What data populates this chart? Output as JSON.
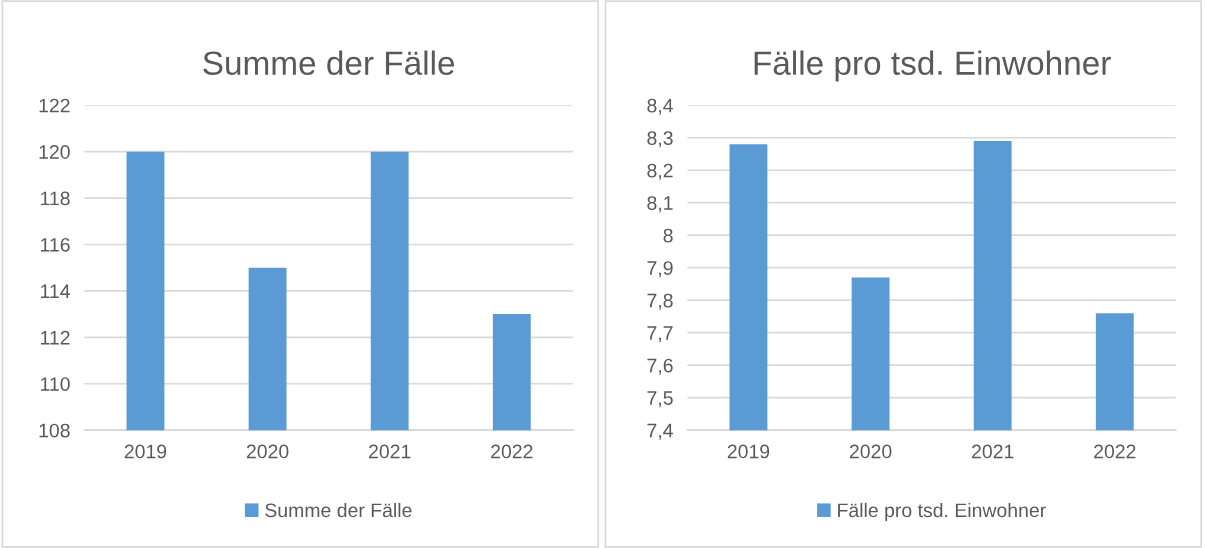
{
  "chart_data": [
    {
      "type": "bar",
      "title": "Summe der Fälle",
      "categories": [
        "2019",
        "2020",
        "2021",
        "2022"
      ],
      "series": [
        {
          "name": "Summe der Fälle",
          "color": "#5b9bd5",
          "values": [
            120,
            115,
            120,
            113
          ]
        }
      ],
      "ylim": [
        108,
        122
      ],
      "yticks": [
        108,
        110,
        112,
        114,
        116,
        118,
        120,
        122
      ],
      "grid": "y",
      "legend": "bottom"
    },
    {
      "type": "bar",
      "title": "Fälle pro tsd. Einwohner",
      "categories": [
        "2019",
        "2020",
        "2021",
        "2022"
      ],
      "series": [
        {
          "name": "Fälle pro tsd. Einwohner",
          "color": "#5b9bd5",
          "values": [
            8.28,
            7.87,
            8.29,
            7.76
          ]
        }
      ],
      "ylim": [
        7.4,
        8.4
      ],
      "yticks": [
        {
          "value": 7.4,
          "label": "7,4"
        },
        {
          "value": 7.5,
          "label": "7,5"
        },
        {
          "value": 7.6,
          "label": "7,6"
        },
        {
          "value": 7.7,
          "label": "7,7"
        },
        {
          "value": 7.8,
          "label": "7,8"
        },
        {
          "value": 7.9,
          "label": "7,9"
        },
        8,
        {
          "value": 8.1,
          "label": "8,1"
        },
        {
          "value": 8.2,
          "label": "8,2"
        },
        {
          "value": 8.3,
          "label": "8,3"
        },
        {
          "value": 8.4,
          "label": "8,4"
        }
      ],
      "grid": "y",
      "legend": "bottom"
    }
  ]
}
